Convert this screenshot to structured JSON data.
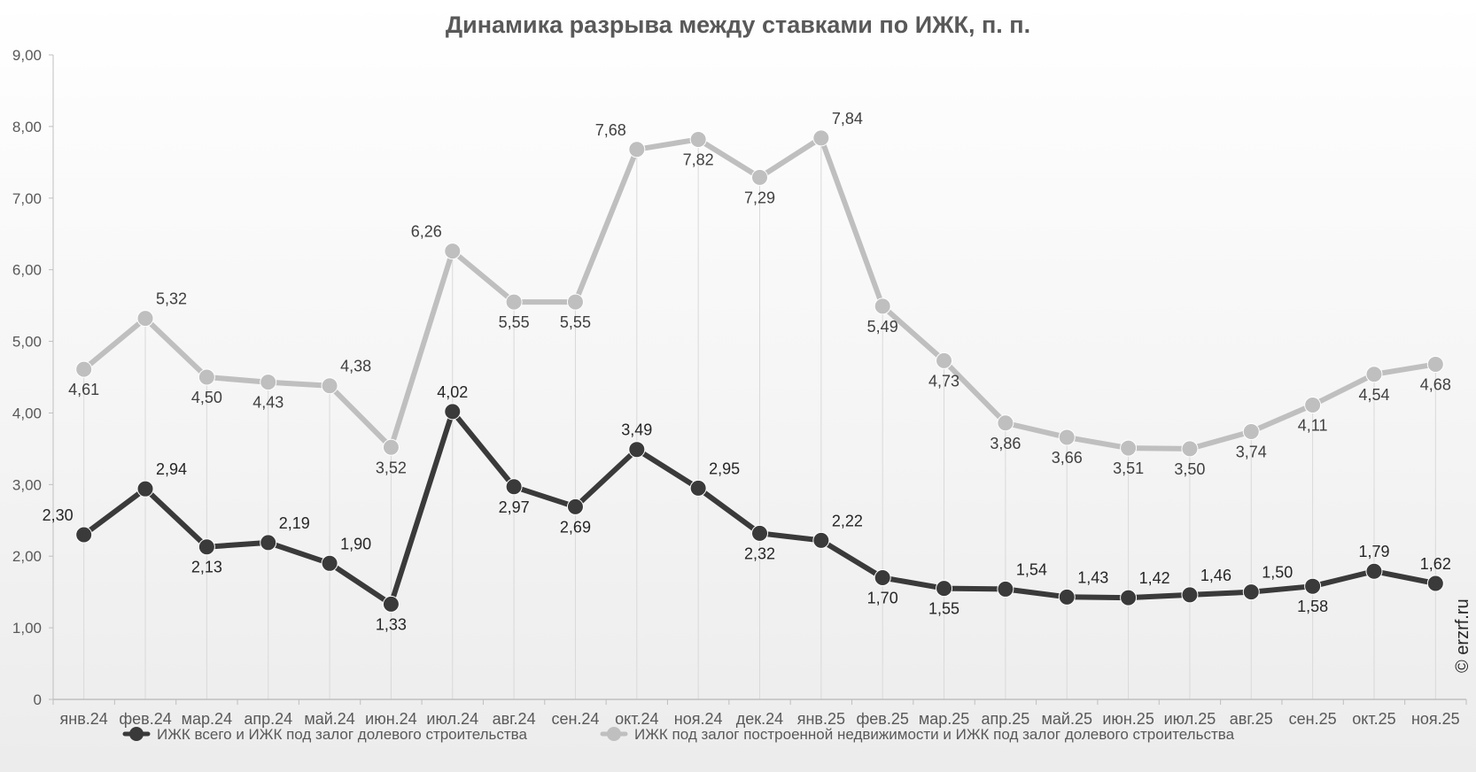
{
  "chart_data": {
    "type": "line",
    "title": "Динамика разрыва между ставками по ИЖК, п. п.",
    "categories": [
      "янв.24",
      "фев.24",
      "мар.24",
      "апр.24",
      "май.24",
      "июн.24",
      "июл.24",
      "авг.24",
      "сен.24",
      "окт.24",
      "ноя.24",
      "дек.24",
      "янв.25",
      "фев.25",
      "мар.25",
      "апр.25",
      "май.25",
      "июн.25",
      "июл.25",
      "авг.25",
      "сен.25",
      "окт.25",
      "ноя.25"
    ],
    "ylim": [
      0,
      9
    ],
    "yticks": [
      "0",
      "1,00",
      "2,00",
      "3,00",
      "4,00",
      "5,00",
      "6,00",
      "7,00",
      "8,00",
      "9,00"
    ],
    "ytick_values": [
      0,
      1,
      2,
      3,
      4,
      5,
      6,
      7,
      8,
      9
    ],
    "grid": "vertical drop lines",
    "legend_position": "bottom",
    "series": [
      {
        "name": "ИЖК всего  и  ИЖК под залог долевого строительства",
        "color": "#3a3a3a",
        "values": [
          2.3,
          2.94,
          2.13,
          2.19,
          1.9,
          1.33,
          4.02,
          2.97,
          2.69,
          3.49,
          2.95,
          2.32,
          2.22,
          1.7,
          1.55,
          1.54,
          1.43,
          1.42,
          1.46,
          1.5,
          1.58,
          1.79,
          1.62
        ],
        "labels": [
          "2,30",
          "2,94",
          "2,13",
          "2,19",
          "1,90",
          "1,33",
          "4,02",
          "2,97",
          "2,69",
          "3,49",
          "2,95",
          "2,32",
          "2,22",
          "1,70",
          "1,55",
          "1,54",
          "1,43",
          "1,42",
          "1,46",
          "1,50",
          "1,58",
          "1,79",
          "1,62"
        ]
      },
      {
        "name": "ИЖК под залог построенной недвижимости  и  ИЖК под залог долевого строительства",
        "color": "#bfbfbf",
        "values": [
          4.61,
          5.32,
          4.5,
          4.43,
          4.38,
          3.52,
          6.26,
          5.55,
          5.55,
          7.68,
          7.82,
          7.29,
          7.84,
          5.49,
          4.73,
          3.86,
          3.66,
          3.51,
          3.5,
          3.74,
          4.11,
          4.54,
          4.68
        ],
        "labels": [
          "4,61",
          "5,32",
          "4,50",
          "4,43",
          "4,38",
          "3,52",
          "6,26",
          "5,55",
          "5,55",
          "7,68",
          "7,82",
          "7,29",
          "7,84",
          "5,49",
          "4,73",
          "3,86",
          "3,66",
          "3,51",
          "3,50",
          "3,74",
          "4,11",
          "4,54",
          "4,68"
        ]
      }
    ]
  },
  "watermark": "© erzrf.ru"
}
